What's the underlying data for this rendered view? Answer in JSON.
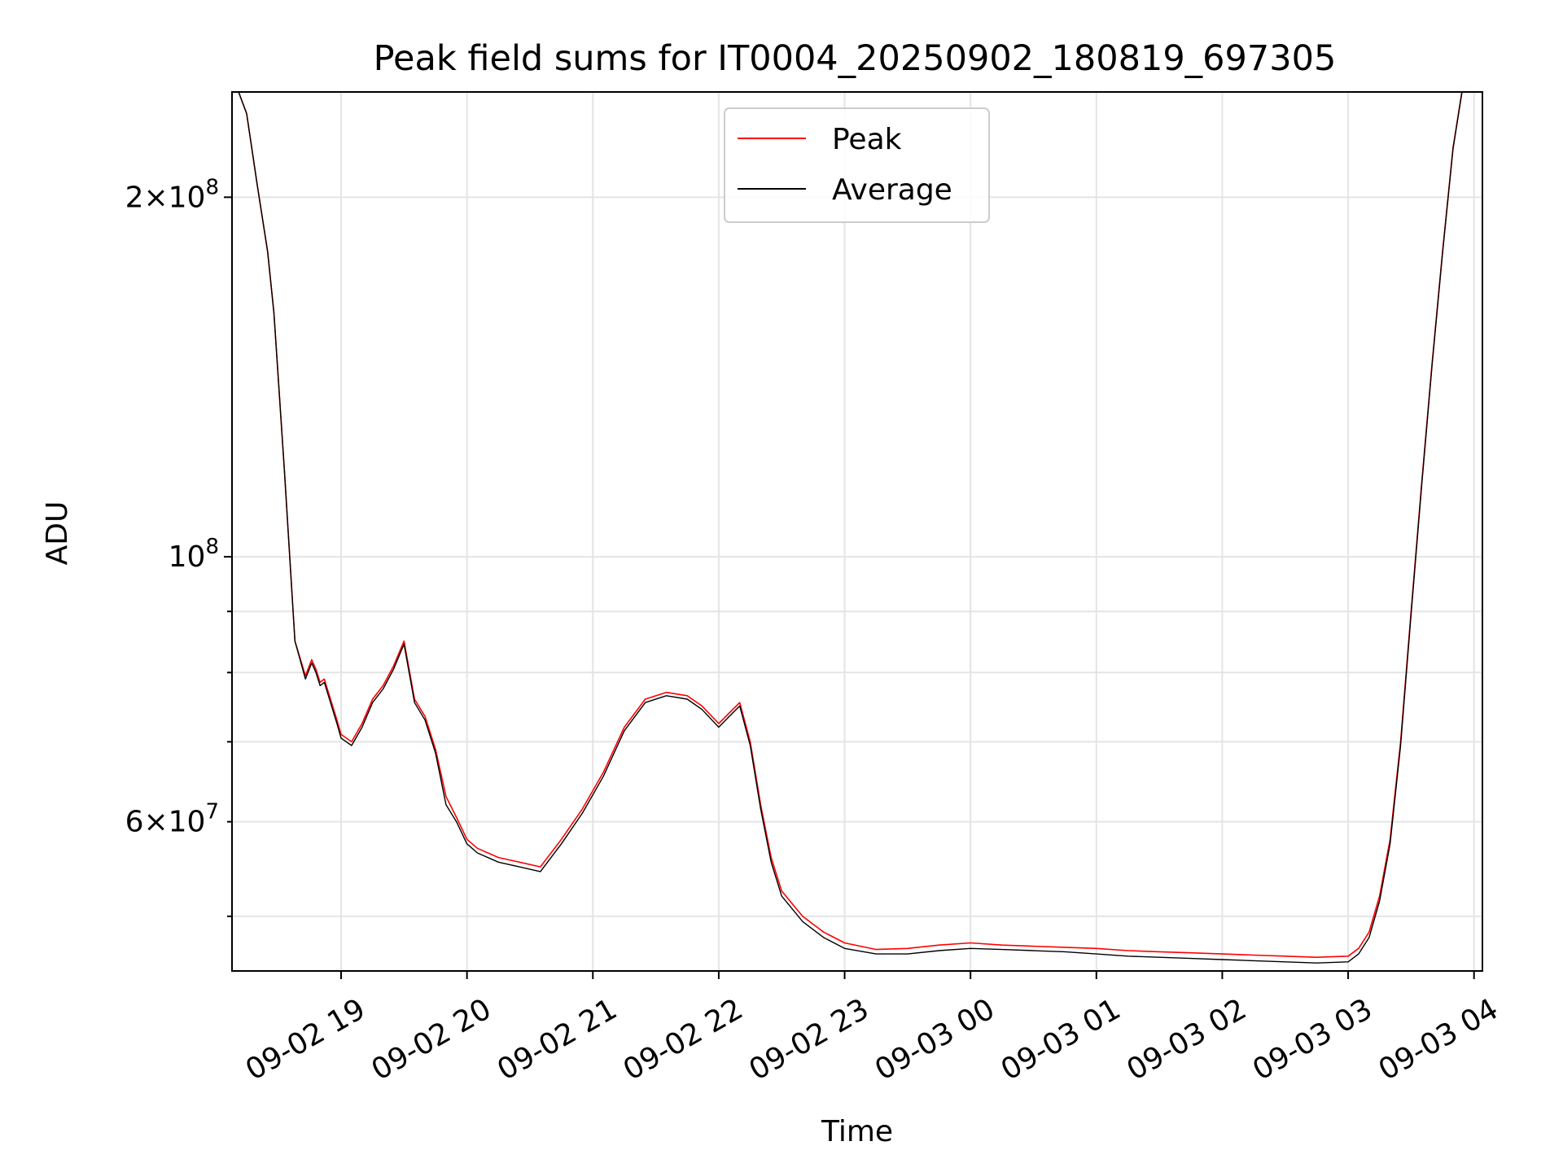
{
  "chart_data": {
    "type": "line",
    "title": "Peak field sums for IT0004_20250902_180819_697305",
    "xlabel": "Time",
    "ylabel": "ADU",
    "x_scale": "time",
    "y_scale": "log",
    "grid": true,
    "legend_position": "top-center",
    "xlim": [
      "2025-09-02 18:08",
      "2025-09-03 04:04"
    ],
    "ylim": [
      45000000,
      245000000
    ],
    "x_ticks": [
      "2025-09-02 19:00",
      "2025-09-02 20:00",
      "2025-09-02 21:00",
      "2025-09-02 22:00",
      "2025-09-02 23:00",
      "2025-09-03 00:00",
      "2025-09-03 01:00",
      "2025-09-03 02:00",
      "2025-09-03 03:00",
      "2025-09-03 04:00"
    ],
    "x_tick_labels": [
      "09-02 19",
      "09-02 20",
      "09-02 21",
      "09-02 22",
      "09-02 23",
      "09-03 00",
      "09-03 01",
      "09-03 02",
      "09-03 03",
      "09-03 04"
    ],
    "y_ticks": [
      {
        "value": 200000000,
        "mantissa": "2",
        "exp": "8",
        "major": true
      },
      {
        "value": 100000000,
        "mantissa": "",
        "exp": "8",
        "major": true
      },
      {
        "value": 60000000,
        "mantissa": "6",
        "exp": "7",
        "major": false
      }
    ],
    "y_minor_ticks": [
      50000000,
      70000000,
      80000000,
      90000000
    ],
    "series": [
      {
        "name": "Peak",
        "color": "#ff0000",
        "x": [
          "2025-09-02 18:10",
          "2025-09-02 18:15",
          "2025-09-02 18:20",
          "2025-09-02 18:25",
          "2025-09-02 18:28",
          "2025-09-02 18:33",
          "2025-09-02 18:38",
          "2025-09-02 18:43",
          "2025-09-02 18:46",
          "2025-09-02 18:48",
          "2025-09-02 18:50",
          "2025-09-02 18:52",
          "2025-09-02 18:58",
          "2025-09-02 19:00",
          "2025-09-02 19:05",
          "2025-09-02 19:10",
          "2025-09-02 19:15",
          "2025-09-02 19:20",
          "2025-09-02 19:25",
          "2025-09-02 19:30",
          "2025-09-02 19:35",
          "2025-09-02 19:40",
          "2025-09-02 19:45",
          "2025-09-02 19:50",
          "2025-09-02 19:55",
          "2025-09-02 20:00",
          "2025-09-02 20:05",
          "2025-09-02 20:15",
          "2025-09-02 20:25",
          "2025-09-02 20:35",
          "2025-09-02 20:45",
          "2025-09-02 20:55",
          "2025-09-02 21:05",
          "2025-09-02 21:15",
          "2025-09-02 21:25",
          "2025-09-02 21:35",
          "2025-09-02 21:45",
          "2025-09-02 21:52",
          "2025-09-02 22:00",
          "2025-09-02 22:05",
          "2025-09-02 22:10",
          "2025-09-02 22:15",
          "2025-09-02 22:20",
          "2025-09-02 22:25",
          "2025-09-02 22:30",
          "2025-09-02 22:40",
          "2025-09-02 22:50",
          "2025-09-02 23:00",
          "2025-09-02 23:15",
          "2025-09-02 23:30",
          "2025-09-02 23:45",
          "2025-09-03 00:00",
          "2025-09-03 00:15",
          "2025-09-03 00:30",
          "2025-09-03 00:45",
          "2025-09-03 01:00",
          "2025-09-03 01:15",
          "2025-09-03 01:30",
          "2025-09-03 01:45",
          "2025-09-03 02:00",
          "2025-09-03 02:15",
          "2025-09-03 02:30",
          "2025-09-03 02:45",
          "2025-09-03 03:00",
          "2025-09-03 03:05",
          "2025-09-03 03:10",
          "2025-09-03 03:15",
          "2025-09-03 03:20",
          "2025-09-03 03:25",
          "2025-09-03 03:30",
          "2025-09-03 03:35",
          "2025-09-03 03:40",
          "2025-09-03 03:45",
          "2025-09-03 03:50",
          "2025-09-03 03:55",
          "2025-09-03 03:58"
        ],
        "y": [
          248000000,
          235000000,
          205000000,
          180000000,
          160000000,
          118000000,
          85000000,
          79500000,
          82000000,
          80500000,
          78500000,
          79000000,
          73000000,
          71000000,
          70000000,
          72500000,
          76000000,
          78000000,
          81000000,
          85000000,
          76000000,
          73500000,
          69000000,
          63000000,
          60500000,
          58000000,
          57000000,
          56000000,
          55500000,
          55000000,
          58000000,
          61500000,
          66000000,
          72000000,
          76000000,
          77000000,
          76500000,
          75000000,
          72500000,
          74000000,
          75500000,
          70000000,
          62000000,
          56000000,
          52500000,
          50000000,
          48500000,
          47500000,
          46900000,
          47000000,
          47300000,
          47500000,
          47300000,
          47200000,
          47100000,
          47000000,
          46800000,
          46700000,
          46600000,
          46500000,
          46400000,
          46300000,
          46200000,
          46300000,
          47000000,
          48500000,
          52000000,
          58000000,
          70000000,
          90000000,
          115000000,
          145000000,
          180000000,
          220000000,
          250000000,
          260000000
        ]
      },
      {
        "name": "Average",
        "color": "#000000",
        "x": [
          "2025-09-02 18:10",
          "2025-09-02 18:15",
          "2025-09-02 18:20",
          "2025-09-02 18:25",
          "2025-09-02 18:28",
          "2025-09-02 18:33",
          "2025-09-02 18:38",
          "2025-09-02 18:43",
          "2025-09-02 18:46",
          "2025-09-02 18:48",
          "2025-09-02 18:50",
          "2025-09-02 18:52",
          "2025-09-02 18:58",
          "2025-09-02 19:00",
          "2025-09-02 19:05",
          "2025-09-02 19:10",
          "2025-09-02 19:15",
          "2025-09-02 19:20",
          "2025-09-02 19:25",
          "2025-09-02 19:30",
          "2025-09-02 19:35",
          "2025-09-02 19:40",
          "2025-09-02 19:45",
          "2025-09-02 19:50",
          "2025-09-02 19:55",
          "2025-09-02 20:00",
          "2025-09-02 20:05",
          "2025-09-02 20:15",
          "2025-09-02 20:25",
          "2025-09-02 20:35",
          "2025-09-02 20:45",
          "2025-09-02 20:55",
          "2025-09-02 21:05",
          "2025-09-02 21:15",
          "2025-09-02 21:25",
          "2025-09-02 21:35",
          "2025-09-02 21:45",
          "2025-09-02 21:52",
          "2025-09-02 22:00",
          "2025-09-02 22:05",
          "2025-09-02 22:10",
          "2025-09-02 22:15",
          "2025-09-02 22:20",
          "2025-09-02 22:25",
          "2025-09-02 22:30",
          "2025-09-02 22:40",
          "2025-09-02 22:50",
          "2025-09-02 23:00",
          "2025-09-02 23:15",
          "2025-09-02 23:30",
          "2025-09-02 23:45",
          "2025-09-03 00:00",
          "2025-09-03 00:15",
          "2025-09-03 00:30",
          "2025-09-03 00:45",
          "2025-09-03 01:00",
          "2025-09-03 01:15",
          "2025-09-03 01:30",
          "2025-09-03 01:45",
          "2025-09-03 02:00",
          "2025-09-03 02:15",
          "2025-09-03 02:30",
          "2025-09-03 02:45",
          "2025-09-03 03:00",
          "2025-09-03 03:05",
          "2025-09-03 03:10",
          "2025-09-03 03:15",
          "2025-09-03 03:20",
          "2025-09-03 03:25",
          "2025-09-03 03:30",
          "2025-09-03 03:35",
          "2025-09-03 03:40",
          "2025-09-03 03:45",
          "2025-09-03 03:50",
          "2025-09-03 03:55",
          "2025-09-03 03:58"
        ],
        "y": [
          248000000,
          235000000,
          205000000,
          180000000,
          160000000,
          118000000,
          85000000,
          79000000,
          81500000,
          80000000,
          78000000,
          78500000,
          72500000,
          70500000,
          69500000,
          72000000,
          75500000,
          77500000,
          80500000,
          84500000,
          75500000,
          73000000,
          68500000,
          62000000,
          60000000,
          57500000,
          56500000,
          55500000,
          55000000,
          54500000,
          57500000,
          61000000,
          65500000,
          71500000,
          75500000,
          76500000,
          76000000,
          74500000,
          72000000,
          73500000,
          75000000,
          69500000,
          61500000,
          55500000,
          52000000,
          49500000,
          48000000,
          47000000,
          46500000,
          46500000,
          46800000,
          47000000,
          46900000,
          46800000,
          46700000,
          46500000,
          46300000,
          46200000,
          46100000,
          46000000,
          45900000,
          45800000,
          45700000,
          45800000,
          46500000,
          48000000,
          51500000,
          57500000,
          69500000,
          89500000,
          114500000,
          144500000,
          179500000,
          219500000,
          249500000,
          259500000
        ]
      }
    ]
  }
}
